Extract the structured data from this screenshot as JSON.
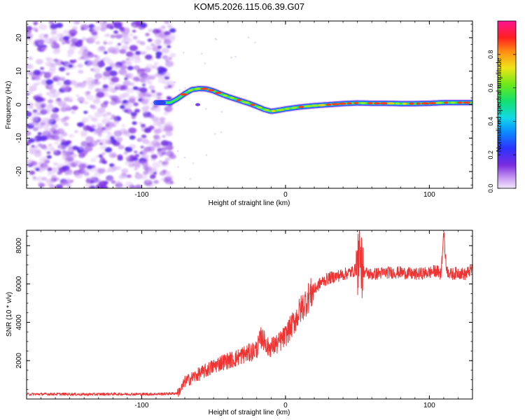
{
  "figure_title": "KOM5.2026.115.06.39.G07",
  "colors": {
    "snr_line": "#ee3333",
    "axis": "#000000",
    "scatter_purple": "#8a3ce6"
  },
  "chart_data": [
    {
      "type": "heatmap",
      "title": "KOM5.2026.115.06.39.G07",
      "xlabel": "Height of straight line (km)",
      "ylabel": "Frequency (Hz)",
      "xlim": [
        -180,
        130
      ],
      "ylim": [
        -25,
        25
      ],
      "x_ticks": [
        -100,
        0,
        100
      ],
      "y_ticks": [
        -20,
        -10,
        0,
        10,
        20
      ],
      "colorbar": {
        "label": "Normalized spectral amplitude",
        "range": [
          0,
          1
        ],
        "ticks": [
          0.0,
          0.2,
          0.4,
          0.6,
          0.8
        ],
        "tick_labels": [
          "0.0",
          "0.2",
          "0.4",
          "0.6",
          "0.8"
        ],
        "colormap": "purple-blue-cyan-green-yellow-red-magenta"
      },
      "noise_region_x": [
        -180,
        -78
      ],
      "signal_trace": {
        "x": [
          -90,
          -80,
          -75,
          -70,
          -65,
          -60,
          -55,
          -50,
          -45,
          -40,
          -35,
          -30,
          -25,
          -20,
          -15,
          -10,
          -5,
          0,
          10,
          20,
          30,
          40,
          50,
          60,
          70,
          80,
          90,
          100,
          110,
          120,
          130
        ],
        "frequency": [
          0.6,
          0.6,
          1.8,
          3.3,
          4.5,
          4.8,
          4.7,
          4.1,
          3.2,
          2.4,
          1.7,
          1.0,
          0.3,
          -0.5,
          -1.4,
          -2.0,
          -1.7,
          -1.3,
          -0.7,
          -0.3,
          0.0,
          0.3,
          0.5,
          0.4,
          0.4,
          0.3,
          0.3,
          0.4,
          0.6,
          0.6,
          0.6
        ],
        "amplitude": [
          0.2,
          0.25,
          0.5,
          0.8,
          0.9,
          0.95,
          0.9,
          0.9,
          0.88,
          0.85,
          0.85,
          0.82,
          0.85,
          0.82,
          0.85,
          0.9,
          0.85,
          0.88,
          0.9,
          0.92,
          0.9,
          0.88,
          0.9,
          0.88,
          0.9,
          0.88,
          0.9,
          0.9,
          0.9,
          0.88,
          0.85
        ]
      }
    },
    {
      "type": "line",
      "xlabel": "Height of straight line (km)",
      "ylabel": "SNR (10 * v/v)",
      "xlim": [
        -180,
        130
      ],
      "ylim": [
        0,
        8800
      ],
      "x_ticks": [
        -100,
        0,
        100
      ],
      "y_ticks": [
        2000,
        4000,
        6000,
        8000
      ],
      "series": [
        {
          "name": "SNR",
          "x": [
            -180,
            -160,
            -140,
            -120,
            -100,
            -90,
            -80,
            -75,
            -72,
            -70,
            -65,
            -60,
            -55,
            -50,
            -45,
            -40,
            -35,
            -30,
            -25,
            -20,
            -17,
            -15,
            -13,
            -10,
            -5,
            0,
            5,
            10,
            15,
            20,
            25,
            30,
            35,
            40,
            45,
            48,
            50,
            51,
            52,
            53,
            55,
            60,
            70,
            80,
            90,
            100,
            105,
            108,
            110,
            112,
            115,
            120,
            125,
            130
          ],
          "values": [
            250,
            260,
            240,
            260,
            250,
            260,
            280,
            300,
            600,
            900,
            1100,
            1300,
            1500,
            1700,
            1900,
            2000,
            2100,
            2300,
            2400,
            2600,
            3200,
            3000,
            2700,
            2700,
            2900,
            3300,
            3900,
            4600,
            5200,
            5700,
            6100,
            6300,
            6400,
            6500,
            6600,
            6700,
            6900,
            6500,
            8500,
            6800,
            6600,
            6500,
            6600,
            6600,
            6500,
            6600,
            6700,
            6500,
            8500,
            6700,
            6500,
            6600,
            6500,
            6800
          ]
        }
      ]
    }
  ]
}
